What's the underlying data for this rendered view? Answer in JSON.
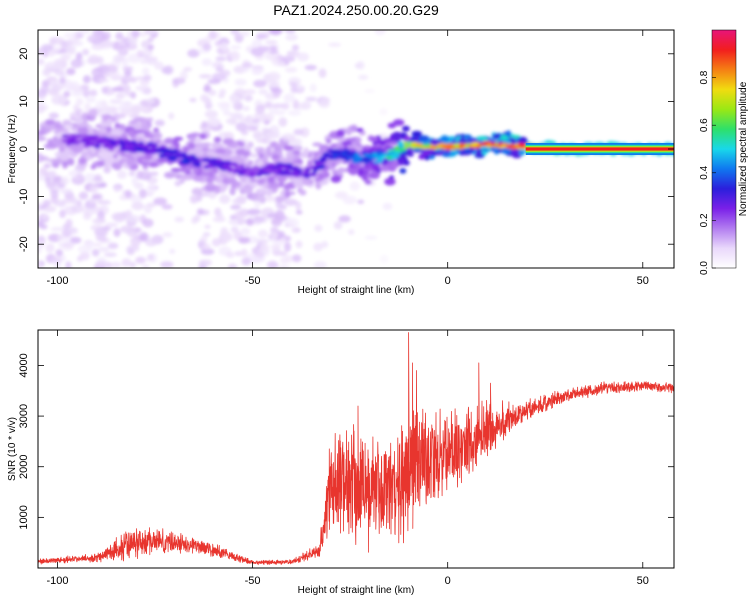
{
  "figure": {
    "title": "PAZ1.2024.250.00.20.G29"
  },
  "colors": {
    "snr_line": "#e8352e",
    "colormap": [
      "#ffffff",
      "#e9d8fb",
      "#b27cf0",
      "#7a20e8",
      "#2b1fdc",
      "#0f78f0",
      "#19d8ea",
      "#2ee06a",
      "#9ae814",
      "#f1dc10",
      "#f57f14",
      "#f21e1e",
      "#e8147a"
    ]
  },
  "chart_data": [
    {
      "type": "heatmap",
      "name": "spectrogram",
      "xlabel": "Height of straight line (km)",
      "ylabel": "Frequency (Hz)",
      "xlim": [
        -105,
        58
      ],
      "ylim": [
        -25,
        25
      ],
      "xticks": [
        -100,
        -50,
        0,
        50
      ],
      "yticks": [
        -20,
        -10,
        0,
        10,
        20
      ],
      "grid": false,
      "colorbar": {
        "label": "Normalized spectral amplitude",
        "range": [
          0,
          1
        ],
        "ticks": [
          "0.0",
          "0.2",
          "0.4",
          "0.6",
          "0.8"
        ],
        "tick_values": [
          0,
          0.2,
          0.4,
          0.6,
          0.8
        ]
      },
      "ridge": [
        {
          "x": -95,
          "f": 2,
          "a": 0.25
        },
        {
          "x": -85,
          "f": 1,
          "a": 0.3
        },
        {
          "x": -75,
          "f": 0,
          "a": 0.32
        },
        {
          "x": -68,
          "f": -2,
          "a": 0.35
        },
        {
          "x": -60,
          "f": -3,
          "a": 0.3
        },
        {
          "x": -50,
          "f": -5,
          "a": 0.25
        },
        {
          "x": -45,
          "f": -4,
          "a": 0.3
        },
        {
          "x": -35,
          "f": -5,
          "a": 0.3
        },
        {
          "x": -30,
          "f": -1,
          "a": 0.35
        },
        {
          "x": -25,
          "f": -1.5,
          "a": 0.4
        },
        {
          "x": -20,
          "f": -2,
          "a": 0.45
        },
        {
          "x": -15,
          "f": -1.5,
          "a": 0.55
        },
        {
          "x": -11,
          "f": 1,
          "a": 0.65
        },
        {
          "x": -6,
          "f": 0.5,
          "a": 0.8
        },
        {
          "x": 2,
          "f": 0.5,
          "a": 0.88
        },
        {
          "x": 10,
          "f": 1,
          "a": 0.9
        },
        {
          "x": 20,
          "f": 0.5,
          "a": 0.95
        },
        {
          "x": 30,
          "f": 0,
          "a": 0.97
        },
        {
          "x": 58,
          "f": 0,
          "a": 0.97
        }
      ]
    },
    {
      "type": "line",
      "name": "snr",
      "xlabel": "Height of straight line (km)",
      "ylabel": "SNR (10 * v/v)",
      "xlim": [
        -105,
        58
      ],
      "ylim": [
        0,
        4700
      ],
      "xticks": [
        -100,
        -50,
        0,
        50
      ],
      "yticks": [
        1000,
        2000,
        3000,
        4000
      ],
      "grid": false,
      "envelope": [
        {
          "x": -105,
          "base": 130,
          "amp": 60
        },
        {
          "x": -90,
          "base": 200,
          "amp": 90
        },
        {
          "x": -82,
          "base": 450,
          "amp": 350
        },
        {
          "x": -75,
          "base": 550,
          "amp": 300
        },
        {
          "x": -65,
          "base": 450,
          "amp": 200
        },
        {
          "x": -58,
          "base": 300,
          "amp": 150
        },
        {
          "x": -50,
          "base": 110,
          "amp": 50
        },
        {
          "x": -40,
          "base": 120,
          "amp": 50
        },
        {
          "x": -33,
          "base": 350,
          "amp": 150
        },
        {
          "x": -30,
          "base": 1600,
          "amp": 1200
        },
        {
          "x": -25,
          "base": 1700,
          "amp": 1300
        },
        {
          "x": -20,
          "base": 1500,
          "amp": 1300
        },
        {
          "x": -15,
          "base": 1500,
          "amp": 1200
        },
        {
          "x": -10,
          "base": 2000,
          "amp": 1500
        },
        {
          "x": -5,
          "base": 2100,
          "amp": 1000
        },
        {
          "x": 0,
          "base": 2300,
          "amp": 900
        },
        {
          "x": 5,
          "base": 2400,
          "amp": 900
        },
        {
          "x": 10,
          "base": 2700,
          "amp": 700
        },
        {
          "x": 15,
          "base": 2900,
          "amp": 400
        },
        {
          "x": 20,
          "base": 3100,
          "amp": 250
        },
        {
          "x": 25,
          "base": 3250,
          "amp": 200
        },
        {
          "x": 30,
          "base": 3400,
          "amp": 150
        },
        {
          "x": 40,
          "base": 3550,
          "amp": 130
        },
        {
          "x": 50,
          "base": 3600,
          "amp": 120
        },
        {
          "x": 58,
          "base": 3550,
          "amp": 100
        }
      ],
      "spikes": [
        {
          "x": -23,
          "y": 3200
        },
        {
          "x": -10,
          "y": 4650
        },
        {
          "x": -9,
          "y": 4050
        },
        {
          "x": -8,
          "y": 3900
        },
        {
          "x": 8,
          "y": 4050
        },
        {
          "x": 11,
          "y": 3650
        }
      ]
    }
  ]
}
